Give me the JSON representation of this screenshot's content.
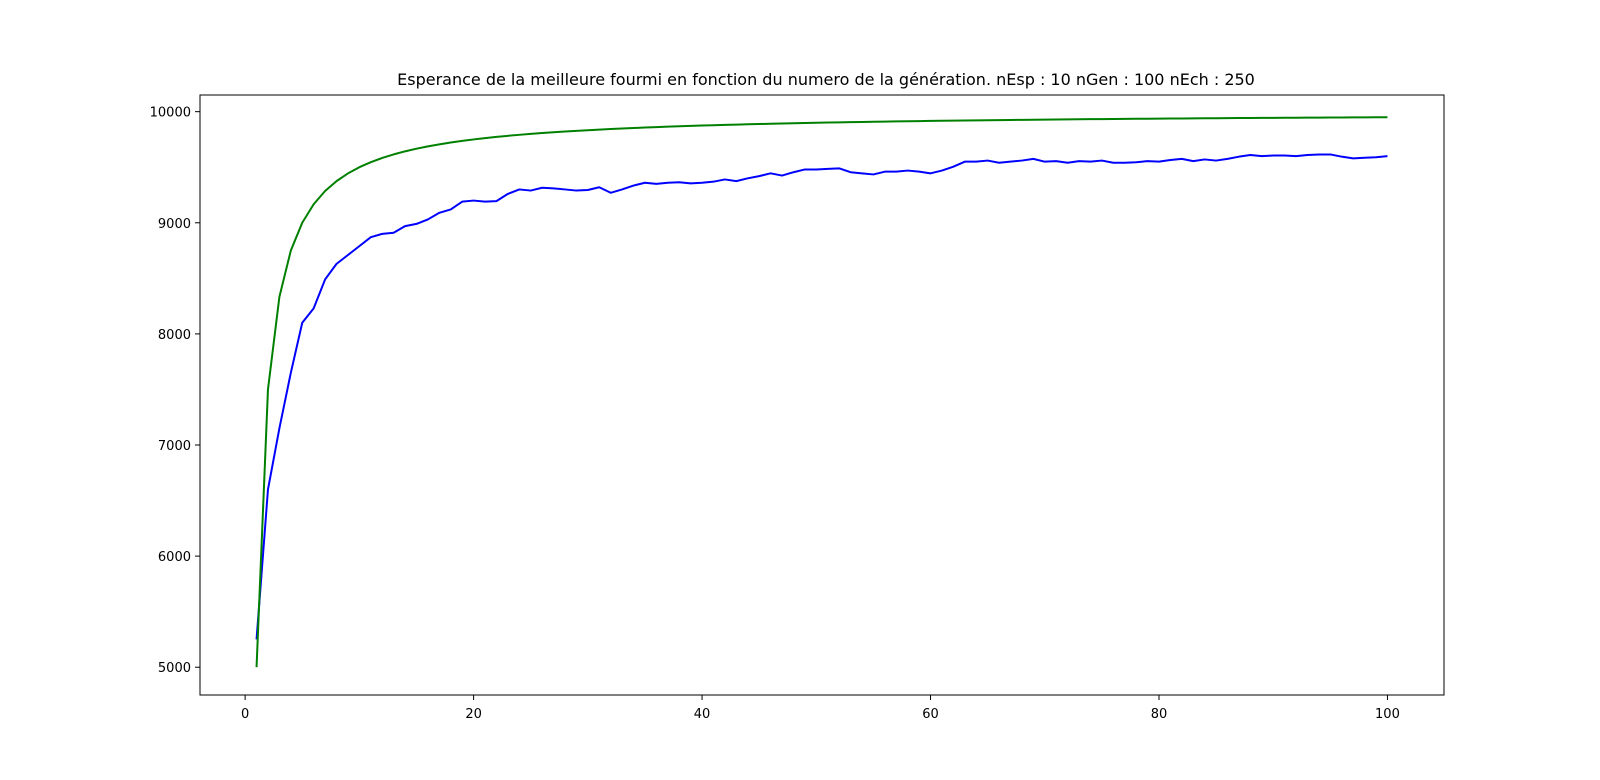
{
  "chart_data": {
    "type": "line",
    "title": "Esperance de la meilleure fourmi en fonction du numero de la génération. nEsp : 10 nGen : 100 nEch : 250",
    "xlabel": "",
    "ylabel": "",
    "xlim": [
      -3.95,
      104.95
    ],
    "ylim": [
      4750,
      10150
    ],
    "x_ticks": [
      0,
      20,
      40,
      60,
      80,
      100
    ],
    "x_tick_labels": [
      "0",
      "20",
      "40",
      "60",
      "80",
      "100"
    ],
    "y_ticks": [
      5000,
      6000,
      7000,
      8000,
      9000,
      10000
    ],
    "y_tick_labels": [
      "5000",
      "6000",
      "7000",
      "8000",
      "9000",
      "10000"
    ],
    "grid": false,
    "legend": null,
    "series": [
      {
        "color": "#0000ff",
        "x": [
          1,
          2,
          3,
          4,
          5,
          6,
          7,
          8,
          9,
          10,
          11,
          12,
          13,
          14,
          15,
          16,
          17,
          18,
          19,
          20,
          21,
          22,
          23,
          24,
          25,
          26,
          27,
          28,
          29,
          30,
          31,
          32,
          33,
          34,
          35,
          36,
          37,
          38,
          39,
          40,
          41,
          42,
          43,
          44,
          45,
          46,
          47,
          48,
          49,
          50,
          51,
          52,
          53,
          54,
          55,
          56,
          57,
          58,
          59,
          60,
          61,
          62,
          63,
          64,
          65,
          66,
          67,
          68,
          69,
          70,
          71,
          72,
          73,
          74,
          75,
          76,
          77,
          78,
          79,
          80,
          81,
          82,
          83,
          84,
          85,
          86,
          87,
          88,
          89,
          90,
          91,
          92,
          93,
          94,
          95,
          96,
          97,
          98,
          99,
          100
        ],
        "y": [
          5250,
          6600,
          7150,
          7650,
          8100,
          8230,
          8490,
          8630,
          8710,
          8790,
          8870,
          8900,
          8910,
          8970,
          8990,
          9030,
          9090,
          9120,
          9190,
          9200,
          9190,
          9195,
          9260,
          9300,
          9290,
          9315,
          9310,
          9300,
          9290,
          9295,
          9320,
          9270,
          9300,
          9335,
          9360,
          9350,
          9360,
          9365,
          9355,
          9360,
          9370,
          9390,
          9375,
          9400,
          9420,
          9445,
          9425,
          9455,
          9480,
          9480,
          9485,
          9490,
          9455,
          9445,
          9435,
          9460,
          9460,
          9470,
          9460,
          9445,
          9470,
          9505,
          9550,
          9550,
          9560,
          9540,
          9550,
          9560,
          9575,
          9550,
          9555,
          9540,
          9555,
          9550,
          9560,
          9540,
          9540,
          9545,
          9555,
          9550,
          9565,
          9575,
          9555,
          9570,
          9560,
          9575,
          9595,
          9610,
          9600,
          9605,
          9605,
          9600,
          9610,
          9615,
          9615,
          9595,
          9580,
          9585,
          9590,
          9600
        ]
      },
      {
        "color": "#008000",
        "formula": "10000*(1 - 1/(2n))",
        "x": [
          1,
          2,
          3,
          4,
          5,
          6,
          7,
          8,
          9,
          10,
          11,
          12,
          13,
          14,
          15,
          16,
          17,
          18,
          19,
          20,
          21,
          22,
          23,
          24,
          25,
          26,
          27,
          28,
          29,
          30,
          31,
          32,
          33,
          34,
          35,
          36,
          37,
          38,
          39,
          40,
          41,
          42,
          43,
          44,
          45,
          46,
          47,
          48,
          49,
          50,
          51,
          52,
          53,
          54,
          55,
          56,
          57,
          58,
          59,
          60,
          61,
          62,
          63,
          64,
          65,
          66,
          67,
          68,
          69,
          70,
          71,
          72,
          73,
          74,
          75,
          76,
          77,
          78,
          79,
          80,
          81,
          82,
          83,
          84,
          85,
          86,
          87,
          88,
          89,
          90,
          91,
          92,
          93,
          94,
          95,
          96,
          97,
          98,
          99,
          100
        ],
        "y": [
          5000,
          7500,
          8333.3,
          8750,
          9000,
          9166.7,
          9285.7,
          9375,
          9444.4,
          9500,
          9545.5,
          9583.3,
          9615.4,
          9642.9,
          9666.7,
          9687.5,
          9705.9,
          9722.2,
          9736.8,
          9750,
          9761.9,
          9772.7,
          9782.6,
          9791.7,
          9800,
          9807.7,
          9814.8,
          9821.4,
          9827.6,
          9833.3,
          9838.7,
          9843.8,
          9848.5,
          9852.9,
          9857.1,
          9861.1,
          9864.9,
          9868.4,
          9871.8,
          9875,
          9878,
          9881,
          9883.7,
          9886.4,
          9888.9,
          9891.3,
          9893.6,
          9895.8,
          9898,
          9900,
          9902,
          9903.8,
          9905.7,
          9907.4,
          9909.1,
          9910.7,
          9912.3,
          9913.8,
          9915.3,
          9916.7,
          9918,
          9919.4,
          9920.6,
          9921.9,
          9923.1,
          9924.2,
          9925.4,
          9926.5,
          9927.5,
          9928.6,
          9929.6,
          9930.6,
          9931.5,
          9932.4,
          9933.3,
          9934.2,
          9935.1,
          9935.9,
          9936.7,
          9937.5,
          9938.3,
          9939,
          9939.8,
          9940.5,
          9941.2,
          9941.9,
          9942.5,
          9943.2,
          9943.8,
          9944.4,
          9945.1,
          9945.7,
          9946.2,
          9946.8,
          9947.4,
          9947.9,
          9948.5,
          9949,
          9949.5,
          9950
        ]
      }
    ]
  }
}
